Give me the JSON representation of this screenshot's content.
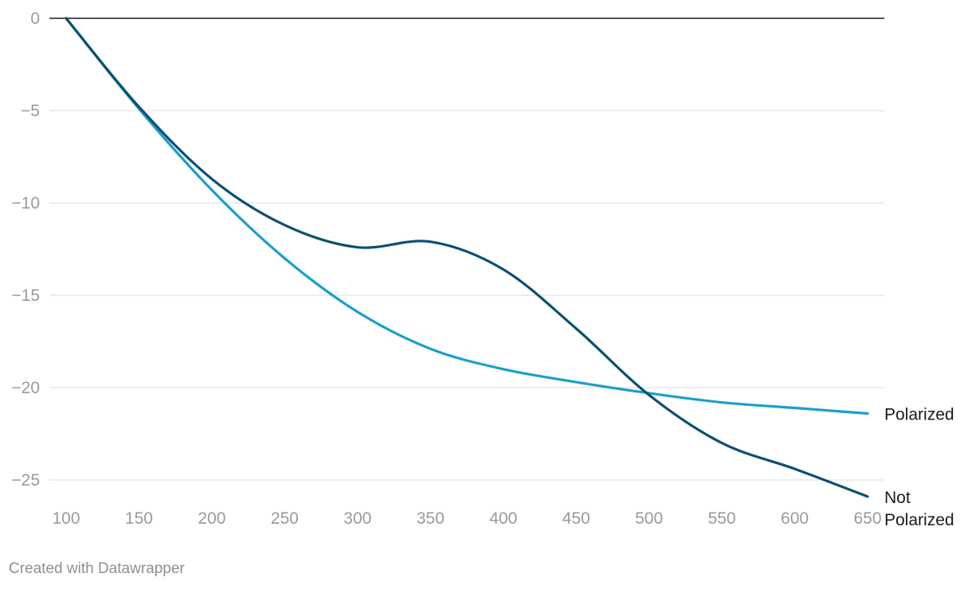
{
  "chart_data": {
    "type": "line",
    "title": "",
    "xlabel": "",
    "ylabel": "",
    "xlim": [
      100,
      650
    ],
    "ylim": [
      -26,
      0
    ],
    "x_ticks": [
      100,
      150,
      200,
      250,
      300,
      350,
      400,
      450,
      500,
      550,
      600,
      650
    ],
    "y_ticks": [
      0,
      -5,
      -10,
      -15,
      -20,
      -25
    ],
    "y_tick_labels": [
      "0",
      "−5",
      "−10",
      "−15",
      "−20",
      "−25"
    ],
    "grid": true,
    "legend": "direct labels at line ends",
    "series": [
      {
        "name": "Polarized",
        "color": "#1a9fcc",
        "x": [
          100,
          150,
          200,
          250,
          300,
          350,
          400,
          450,
          500,
          550,
          600,
          650
        ],
        "y": [
          0,
          -4.9,
          -9.3,
          -13.0,
          -15.9,
          -17.9,
          -19.0,
          -19.7,
          -20.3,
          -20.8,
          -21.1,
          -21.4
        ]
      },
      {
        "name": "Not Polarized",
        "label_lines": [
          "Not",
          "Polarized"
        ],
        "color": "#0b4f73",
        "x": [
          100,
          150,
          200,
          250,
          300,
          350,
          400,
          450,
          500,
          550,
          600,
          650
        ],
        "y": [
          0,
          -4.8,
          -8.7,
          -11.2,
          -12.4,
          -12.1,
          -13.6,
          -16.8,
          -20.4,
          -23.0,
          -24.4,
          -25.9
        ]
      }
    ]
  },
  "footer": {
    "credit": "Created with Datawrapper"
  }
}
